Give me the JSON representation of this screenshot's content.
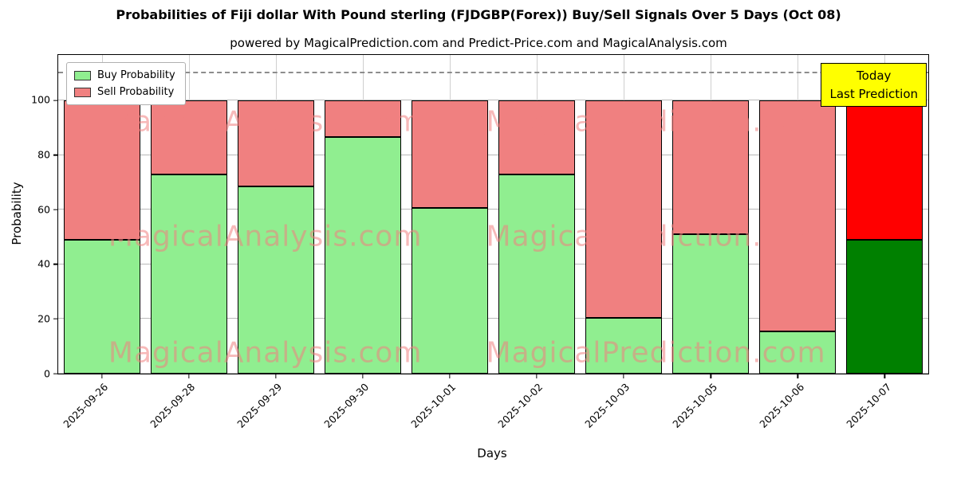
{
  "subtitle": "powered by MagicalPrediction.com and Predict-Price.com and MagicalAnalysis.com",
  "watermarks": {
    "left": "MagicalAnalysis.com",
    "right": "MagicalPrediction.com"
  },
  "legend": [
    {
      "label": "Buy Probability",
      "color": "#90ee90"
    },
    {
      "label": "Sell Probability",
      "color": "#f08080"
    }
  ],
  "annotation": {
    "line1": "Today",
    "line2": "Last Prediction",
    "bg": "#ffff00"
  },
  "chart_data": {
    "type": "bar",
    "stacked": true,
    "title": "Probabilities of Fiji dollar With Pound sterling (FJDGBP(Forex)) Buy/Sell Signals Over 5 Days (Oct 08)",
    "categories": [
      "2025-09-26",
      "2025-09-28",
      "2025-09-29",
      "2025-09-30",
      "2025-10-01",
      "2025-10-02",
      "2025-10-03",
      "2025-10-05",
      "2025-10-06",
      "2025-10-07"
    ],
    "series": [
      {
        "name": "Buy Probability",
        "values": [
          49,
          73,
          68.5,
          86.5,
          60.5,
          73,
          20.5,
          51,
          15.5,
          49
        ]
      },
      {
        "name": "Sell Probability",
        "values": [
          51,
          27,
          31.5,
          13.5,
          39.5,
          27,
          79.5,
          49,
          84.5,
          51
        ]
      }
    ],
    "colors": {
      "buy": "#90ee90",
      "sell": "#f08080",
      "buy_last": "#008000",
      "sell_last": "#ff0000",
      "edge": "#000000"
    },
    "bar_width_frac": 0.88,
    "xlabel": "Days",
    "ylabel": "Probability",
    "yticks": [
      0,
      20,
      40,
      60,
      80,
      100
    ],
    "ylim": [
      0,
      116.6
    ],
    "dashed_line_y": 110,
    "grid": true,
    "legend_position": "upper left"
  }
}
